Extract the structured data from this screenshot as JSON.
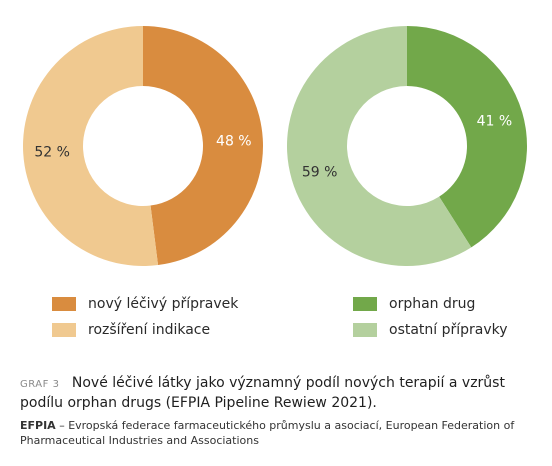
{
  "chart_data": [
    {
      "type": "pie",
      "categories": [
        "nový léčivý přípravek",
        "rozšíření indikace"
      ],
      "values": [
        48,
        52
      ],
      "labels": [
        "48 %",
        "52 %"
      ],
      "colors": [
        "#d98c3f",
        "#f0c990"
      ]
    },
    {
      "type": "pie",
      "categories": [
        "orphan drug",
        "ostatní přípravky"
      ],
      "values": [
        41,
        59
      ],
      "labels": [
        "41 %",
        "59 %"
      ],
      "colors": [
        "#72a84a",
        "#b4d09e"
      ]
    }
  ],
  "legend": [
    {
      "label": "nový léčivý přípravek",
      "color": "#d98c3f"
    },
    {
      "label": "rozšíření indikace",
      "color": "#f0c990"
    },
    {
      "label": "orphan drug",
      "color": "#72a84a"
    },
    {
      "label": "ostatní přípravky",
      "color": "#b4d09e"
    }
  ],
  "caption": {
    "tag": "GRAF 3",
    "title": "Nové léčivé látky jako významný podíl nových terapií a vzrůst podílu orphan drugs (EFPIA Pipeline Rewiew 2021).",
    "source_abbr": "EFPIA",
    "source_text": " – Evropská federace farmaceutického průmyslu a asociací, European Federation of Pharmaceutical Industries and Associations"
  }
}
